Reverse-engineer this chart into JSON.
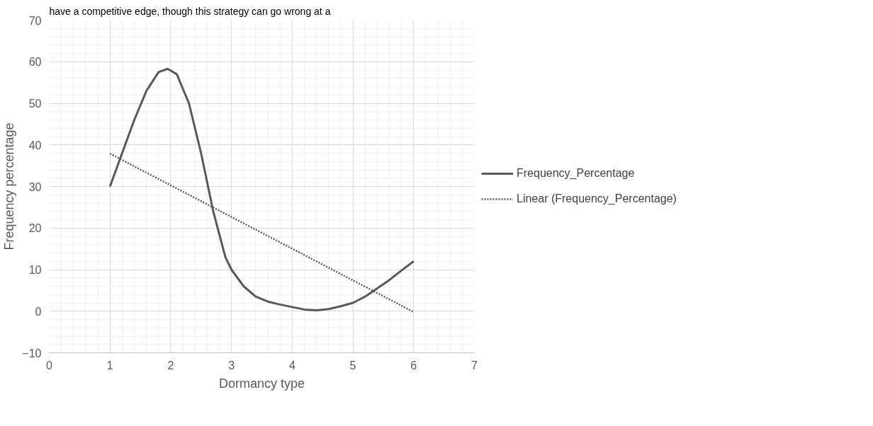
{
  "chart_data": {
    "type": "line",
    "xlabel": "Dormancy type",
    "ylabel": "Frequency percentage",
    "annotations": [
      "have a competitive edge, though this strategy can go wrong at a"
    ],
    "series": [
      {
        "name": "Frequency_Percentage",
        "color": "#595959",
        "x": [
          1,
          1.2,
          1.4,
          1.6,
          1.8,
          1.95,
          2.1,
          2.3,
          2.5,
          2.7,
          2.9,
          3,
          3.2,
          3.4,
          3.6,
          3.8,
          4,
          4.2,
          4.4,
          4.6,
          4.8,
          5,
          5.2,
          5.4,
          5.6,
          5.8,
          6
        ],
        "values": [
          30,
          38,
          46,
          53,
          57.5,
          58.3,
          57,
          50,
          38,
          24,
          13,
          10,
          6,
          3.5,
          2.3,
          1.6,
          1,
          0.4,
          0.2,
          0.5,
          1.2,
          2,
          3.5,
          5.5,
          7.5,
          9.8,
          12
        ],
        "line_style": "solid"
      },
      {
        "name": "Linear (Frequency_Percentage)",
        "color": "#595959",
        "x": [
          1,
          6
        ],
        "values": [
          37.9,
          -0.2
        ],
        "line_style": "dotted"
      }
    ],
    "xlim": [
      0,
      7
    ],
    "xticks": [
      0,
      1,
      2,
      3,
      4,
      5,
      6,
      7
    ],
    "ylim": [
      -10,
      70
    ],
    "yticks": [
      -10,
      0,
      10,
      20,
      30,
      40,
      50,
      60,
      70
    ],
    "grid": true,
    "legend": "right",
    "marker": "none"
  }
}
